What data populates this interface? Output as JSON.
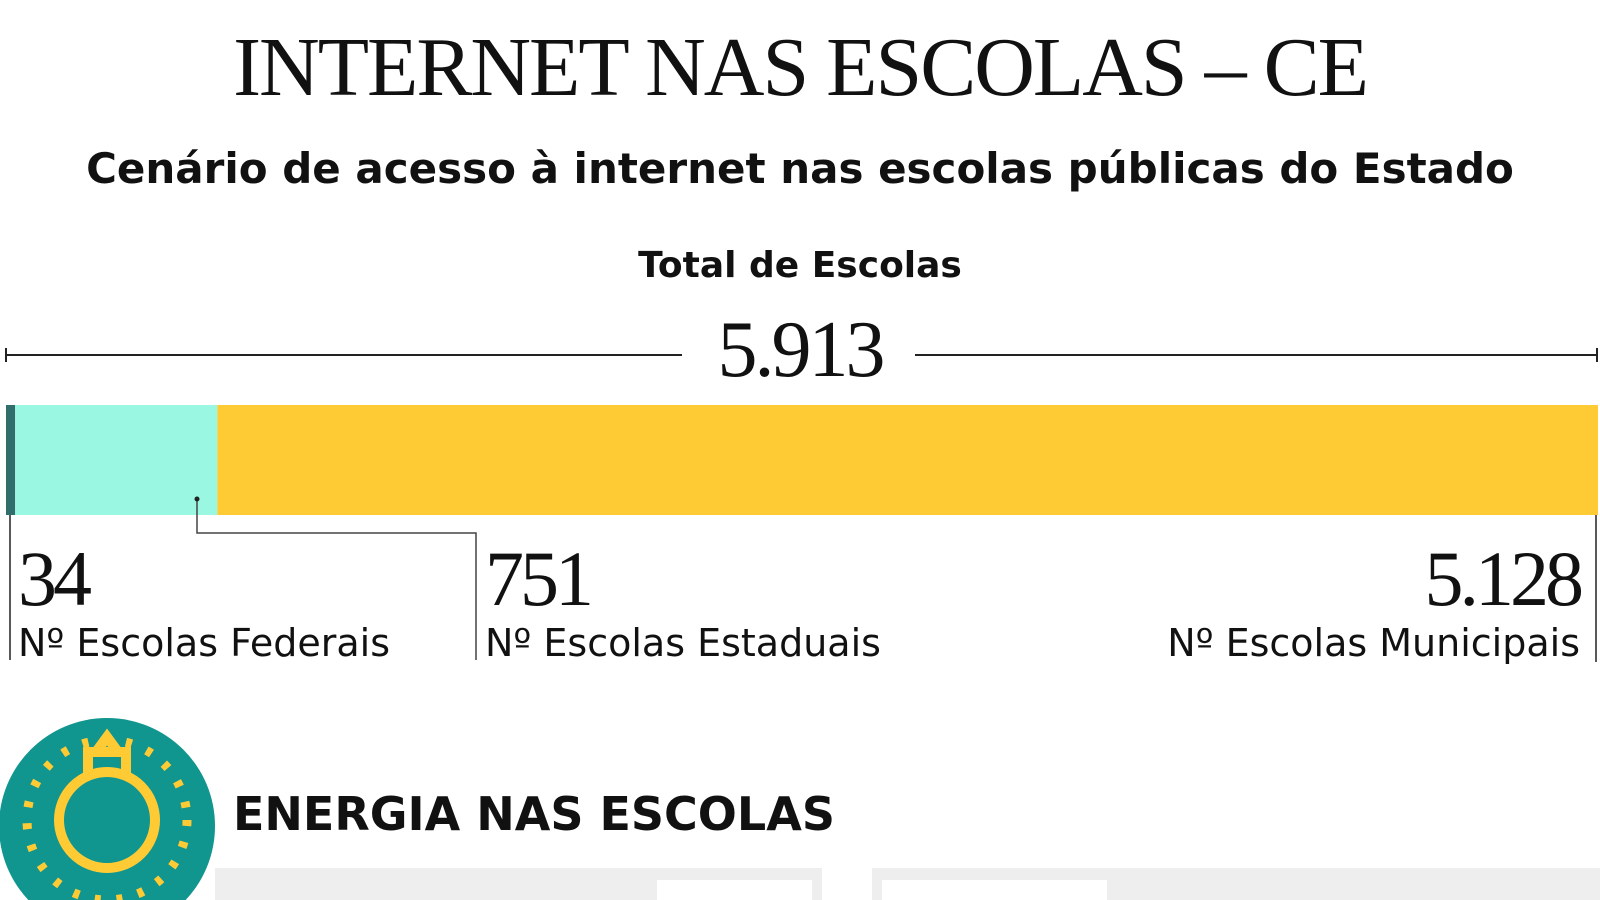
{
  "chart_data": {
    "type": "stacked-bar",
    "title": "INTERNET NAS ESCOLAS – CE",
    "subtitle": "Cenário de acesso à internet nas escolas públicas do Estado",
    "total_label": "Total de Escolas",
    "total": 5913,
    "total_value_label": "5.913",
    "series": [
      {
        "name": "Nº Escolas Federais",
        "color": "#2f6e6a",
        "values": [
          34
        ],
        "value_labels": [
          "34"
        ]
      },
      {
        "name": "Nº Escolas Estaduais",
        "color": "#99f7e2",
        "values": [
          751
        ],
        "value_labels": [
          "751"
        ]
      },
      {
        "name": "Nº Escolas Municipais",
        "color": "#ffcb35",
        "values": [
          5128
        ],
        "value_labels": [
          "5.128"
        ]
      }
    ]
  },
  "section": {
    "title": "ENERGIA NAS ESCOLAS"
  }
}
